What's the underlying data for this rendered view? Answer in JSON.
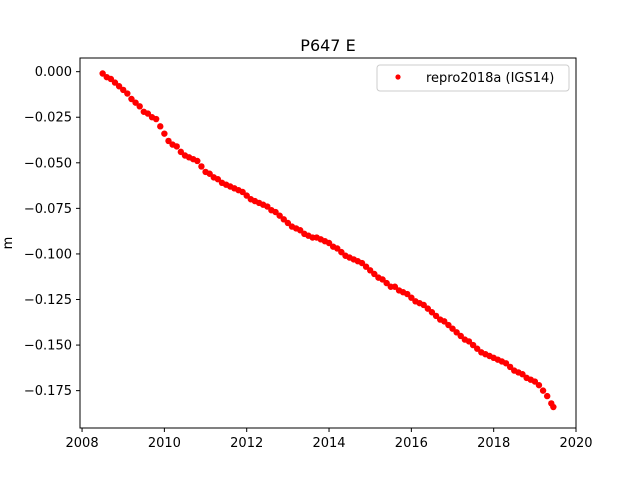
{
  "chart_data": {
    "type": "scatter",
    "title": "P647 E",
    "xlabel": "",
    "ylabel": "m",
    "xlim": [
      2007.95,
      2020.0
    ],
    "ylim": [
      -0.1955,
      0.0075
    ],
    "x_ticks": [
      2008,
      2010,
      2012,
      2014,
      2016,
      2018,
      2020
    ],
    "x_tick_labels": [
      "2008",
      "2010",
      "2012",
      "2014",
      "2016",
      "2018",
      "2020"
    ],
    "y_ticks": [
      0.0,
      -0.025,
      -0.05,
      -0.075,
      -0.1,
      -0.125,
      -0.15,
      -0.175
    ],
    "y_tick_labels": [
      "0.000",
      "−0.025",
      "−0.050",
      "−0.075",
      "−0.100",
      "−0.125",
      "−0.150",
      "−0.175"
    ],
    "grid": false,
    "legend_position": "top-right",
    "series": [
      {
        "name": "repro2018a (IGS14)",
        "color": "#ff0000",
        "marker": "circle",
        "x": [
          2008.5,
          2008.6,
          2008.7,
          2008.8,
          2008.9,
          2009.0,
          2009.1,
          2009.2,
          2009.3,
          2009.4,
          2009.5,
          2009.6,
          2009.7,
          2009.8,
          2009.9,
          2010.0,
          2010.1,
          2010.2,
          2010.3,
          2010.4,
          2010.5,
          2010.6,
          2010.7,
          2010.8,
          2010.9,
          2011.0,
          2011.1,
          2011.2,
          2011.3,
          2011.4,
          2011.5,
          2011.6,
          2011.7,
          2011.8,
          2011.9,
          2012.0,
          2012.1,
          2012.2,
          2012.3,
          2012.4,
          2012.5,
          2012.6,
          2012.7,
          2012.8,
          2012.9,
          2013.0,
          2013.1,
          2013.2,
          2013.3,
          2013.4,
          2013.5,
          2013.6,
          2013.7,
          2013.8,
          2013.9,
          2014.0,
          2014.1,
          2014.2,
          2014.3,
          2014.4,
          2014.5,
          2014.6,
          2014.7,
          2014.8,
          2014.9,
          2015.0,
          2015.1,
          2015.2,
          2015.3,
          2015.4,
          2015.5,
          2015.6,
          2015.7,
          2015.8,
          2015.9,
          2016.0,
          2016.1,
          2016.2,
          2016.3,
          2016.4,
          2016.5,
          2016.6,
          2016.7,
          2016.8,
          2016.9,
          2017.0,
          2017.1,
          2017.2,
          2017.3,
          2017.4,
          2017.5,
          2017.6,
          2017.7,
          2017.8,
          2017.9,
          2018.0,
          2018.1,
          2018.2,
          2018.3,
          2018.4,
          2018.5,
          2018.6,
          2018.7,
          2018.8,
          2018.9,
          2019.0,
          2019.1,
          2019.2,
          2019.3,
          2019.4,
          2019.45
        ],
        "y": [
          -0.001,
          -0.003,
          -0.004,
          -0.006,
          -0.008,
          -0.01,
          -0.012,
          -0.015,
          -0.017,
          -0.019,
          -0.022,
          -0.023,
          -0.025,
          -0.026,
          -0.03,
          -0.034,
          -0.038,
          -0.04,
          -0.041,
          -0.044,
          -0.046,
          -0.047,
          -0.048,
          -0.049,
          -0.052,
          -0.055,
          -0.056,
          -0.058,
          -0.059,
          -0.061,
          -0.062,
          -0.063,
          -0.064,
          -0.065,
          -0.066,
          -0.068,
          -0.07,
          -0.071,
          -0.072,
          -0.073,
          -0.074,
          -0.076,
          -0.077,
          -0.079,
          -0.081,
          -0.083,
          -0.085,
          -0.086,
          -0.087,
          -0.089,
          -0.09,
          -0.091,
          -0.091,
          -0.092,
          -0.093,
          -0.094,
          -0.096,
          -0.097,
          -0.099,
          -0.101,
          -0.102,
          -0.103,
          -0.104,
          -0.105,
          -0.107,
          -0.109,
          -0.111,
          -0.113,
          -0.114,
          -0.116,
          -0.118,
          -0.118,
          -0.12,
          -0.121,
          -0.122,
          -0.124,
          -0.126,
          -0.127,
          -0.128,
          -0.13,
          -0.132,
          -0.134,
          -0.136,
          -0.137,
          -0.139,
          -0.141,
          -0.143,
          -0.145,
          -0.147,
          -0.148,
          -0.15,
          -0.152,
          -0.154,
          -0.155,
          -0.156,
          -0.157,
          -0.158,
          -0.159,
          -0.16,
          -0.162,
          -0.164,
          -0.165,
          -0.166,
          -0.168,
          -0.169,
          -0.17,
          -0.172,
          -0.175,
          -0.178,
          -0.182,
          -0.184
        ]
      }
    ]
  }
}
